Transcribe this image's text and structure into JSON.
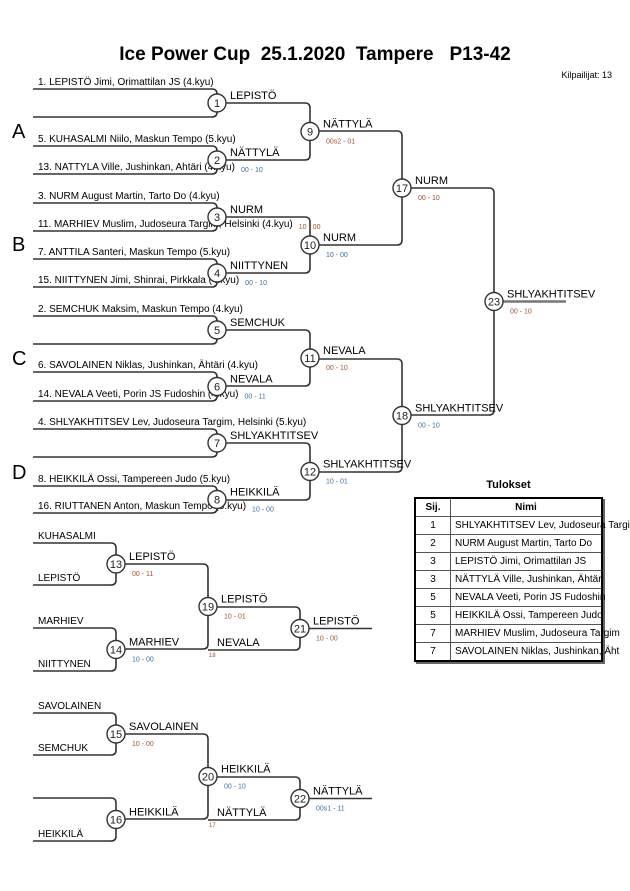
{
  "title": "Ice Power Cup  25.1.2020  Tampere   P13-42",
  "competitors_label": "Kilpailijat: 13",
  "pools": [
    "A",
    "B",
    "C",
    "D"
  ],
  "entries": {
    "1": [
      "1. LEPISTÖ Jimi, Orimattilan JS (4.kyu)",
      ""
    ],
    "2": [
      "5. KUHASALMI Niilo, Maskun Tempo (5.kyu)",
      "13. NATTYLA Ville, Jushinkan, Ahtäri (4.kyu)"
    ],
    "3": [
      "3. NURM August Martin, Tarto Do (4.kyu)",
      "11. MARHIEV Muslim, Judoseura Targim, Helsinki (4.kyu)"
    ],
    "4": [
      "7. ANTTILA Santeri, Maskun Tempo (5.kyu)",
      "15. NIITTYNEN Jimi, Shinrai, Pirkkala (4.kyu)"
    ],
    "5": [
      "2. SEMCHUK Maksim, Maskun Tempo (4.kyu)",
      ""
    ],
    "6": [
      "6. SAVOLAINEN Niklas, Jushinkan, Ähtäri (4.kyu)",
      "14. NEVALA Veeti, Porin JS Fudoshin (4.kyu)"
    ],
    "7": [
      "4. SHLYAKHTITSEV Lev, Judoseura Targim, Helsinki (5.kyu)",
      ""
    ],
    "8": [
      "8. HEIKKILÄ Ossi, Tampereen Judo (5.kyu)",
      "16. RIUTTANEN Anton, Maskun Tempo (5.kyu)"
    ],
    "13": [
      "KUHASALMI",
      "LEPISTÖ"
    ],
    "14": [
      "MARHIEV",
      "NIITTYNEN"
    ],
    "15": [
      "SAVOLAINEN",
      "SEMCHUK"
    ],
    "16": [
      "",
      "HEIKKILÄ"
    ]
  },
  "matches": {
    "1": {
      "num": "1",
      "winner": "LEPISTÖ",
      "score": ""
    },
    "2": {
      "num": "2",
      "winner": "NÄTTYLÄ",
      "score": "00 - 10"
    },
    "3": {
      "num": "3",
      "winner": "NURM",
      "score": "10 - 00"
    },
    "4": {
      "num": "4",
      "winner": "NIITTYNEN",
      "score": "00 - 10"
    },
    "5": {
      "num": "5",
      "winner": "SEMCHUK",
      "score": ""
    },
    "6": {
      "num": "6",
      "winner": "NEVALA",
      "score": "00 - 11"
    },
    "7": {
      "num": "7",
      "winner": "SHLYAKHTITSEV",
      "score": ""
    },
    "8": {
      "num": "8",
      "winner": "HEIKKILÄ",
      "score": "10 - 00"
    },
    "9": {
      "num": "9",
      "winner": "NÄTTYLÄ",
      "score": "00s2 - 01"
    },
    "10": {
      "num": "10",
      "winner": "NURM",
      "score": "10 - 00"
    },
    "11": {
      "num": "11",
      "winner": "NEVALA",
      "score": "00 - 10"
    },
    "12": {
      "num": "12",
      "winner": "SHLYAKHTITSEV",
      "score": "10 - 01"
    },
    "17": {
      "num": "17",
      "winner": "NURM",
      "score": "00 - 10"
    },
    "18": {
      "num": "18",
      "winner": "SHLYAKHTITSEV",
      "score": "00 - 10"
    },
    "23": {
      "num": "23",
      "winner": "SHLYAKHTITSEV",
      "score": "00 - 10"
    },
    "13": {
      "num": "13",
      "winner": "LEPISTÖ",
      "score": "00 - 11"
    },
    "14": {
      "num": "14",
      "winner": "MARHIEV",
      "score": "10 - 00"
    },
    "19": {
      "num": "19",
      "winner": "LEPISTÖ",
      "score": "10 - 01"
    },
    "21": {
      "num": "21",
      "winner": "LEPISTÖ",
      "score": "10 - 00",
      "lower_entry": "NEVALA",
      "lower_source": "18"
    },
    "15": {
      "num": "15",
      "winner": "SAVOLAINEN",
      "score": "10 - 00"
    },
    "16": {
      "num": "16",
      "winner": "HEIKKILÄ",
      "score": ""
    },
    "20": {
      "num": "20",
      "winner": "HEIKKILÄ",
      "score": "00 - 10"
    },
    "22": {
      "num": "22",
      "winner": "NÄTTYLÄ",
      "score": "00s1 - 11",
      "lower_entry": "NÄTTYLÄ",
      "lower_source": "17"
    }
  },
  "results": {
    "title": "Tulokset",
    "headers": [
      "Sij.",
      "Nimi"
    ],
    "rows": [
      {
        "rank": "1",
        "name": "SHLYAKHTITSEV Lev, Judoseura Targim"
      },
      {
        "rank": "2",
        "name": "NURM August Martin, Tarto Do"
      },
      {
        "rank": "3",
        "name": "LEPISTÖ Jimi, Orimattilan JS"
      },
      {
        "rank": "3",
        "name": "NÄTTYLÄ Ville, Jushinkan, Ähtäri"
      },
      {
        "rank": "5",
        "name": "NEVALA Veeti, Porin JS Fudoshin"
      },
      {
        "rank": "5",
        "name": "HEIKKILÄ Ossi, Tampereen Judo"
      },
      {
        "rank": "7",
        "name": "MARHIEV Muslim, Judoseura Targim"
      },
      {
        "rank": "7",
        "name": "SAVOLAINEN Niklas, Jushinkan, Äht"
      }
    ]
  },
  "colors": {
    "line": "#333333",
    "score_first": "#a0522d",
    "score_second": "#3a6ea5"
  }
}
